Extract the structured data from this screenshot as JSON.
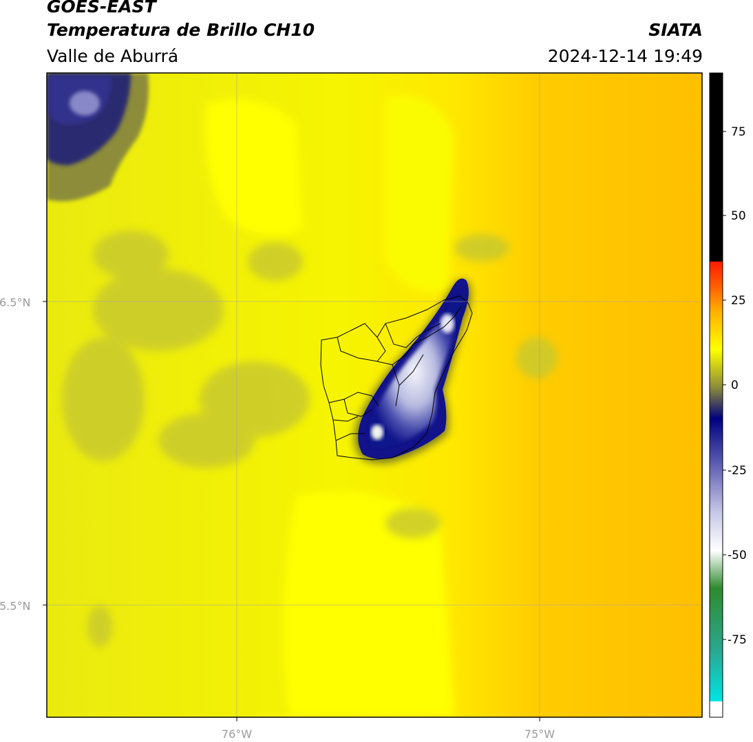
{
  "header": {
    "satellite": "GOES-EAST",
    "product": "Temperatura de Brillo CH10",
    "region": "Valle de Aburrá",
    "organization": "SIATA",
    "datetime": "2024-12-14 19:49"
  },
  "map": {
    "lat_labels": [
      "6.5°N",
      "5.5°N"
    ],
    "lon_labels": [
      "76°W",
      "75°W"
    ],
    "gridlines": true
  },
  "colorbar": {
    "ticks": [
      "75",
      "50",
      "25",
      "0",
      "-25",
      "-50",
      "-75"
    ],
    "colors": {
      "hot": "#000000",
      "red": "#ff2a00",
      "orange": "#ff8c00",
      "yellow": "#ffff00",
      "olive": "#8c8c3a",
      "navy": "#000080",
      "white": "#ffffff",
      "green": "#2e8b2e",
      "cyan": "#00e5e5"
    }
  },
  "colors": {
    "background_yellow": "#f4f200",
    "bright_yellow": "#ffff00",
    "east_orange": "#ffc000",
    "olive_shade": "#cfcf2a",
    "cloud_navy": "#1a1a8c",
    "cloud_core": "#e8e8f4"
  }
}
